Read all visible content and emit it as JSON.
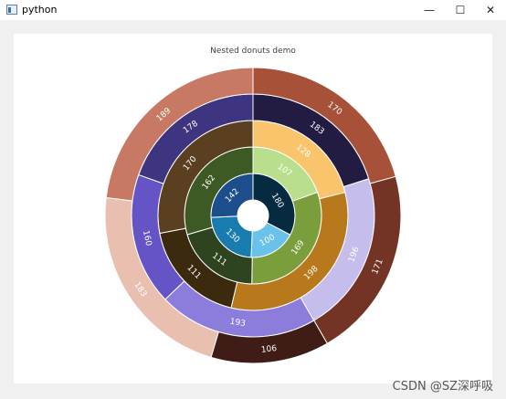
{
  "window": {
    "title": "python",
    "minimize": "—",
    "maximize": "☐",
    "close": "✕"
  },
  "watermark": "CSDN @SZ深呼吸",
  "chart_data": {
    "type": "pie",
    "title": "Nested donuts demo",
    "rings": [
      {
        "name": "",
        "values": [
          180,
          100,
          130,
          142
        ],
        "colors": [
          "#062a40",
          "#6ac2ea",
          "#197cb0",
          "#1c4e8b"
        ]
      },
      {
        "name": "",
        "values": [
          107,
          169,
          111,
          162
        ],
        "colors": [
          "#badf8c",
          "#7a9e3c",
          "#2e4420",
          "#3d5a25"
        ]
      },
      {
        "name": "",
        "values": [
          128,
          198,
          111,
          170
        ],
        "colors": [
          "#f9c46c",
          "#b8791c",
          "#3c2a0e",
          "#5a4020"
        ]
      },
      {
        "name": "",
        "values": [
          183,
          196,
          193,
          160,
          178
        ],
        "colors": [
          "#221c42",
          "#c5bdec",
          "#8c7ddc",
          "#6554c6",
          "#3e3580"
        ]
      },
      {
        "name": "",
        "values": [
          170,
          171,
          106,
          183,
          189
        ],
        "colors": [
          "#a75138",
          "#733426",
          "#3f1c16",
          "#e9bfb0",
          "#c87964"
        ]
      }
    ]
  }
}
